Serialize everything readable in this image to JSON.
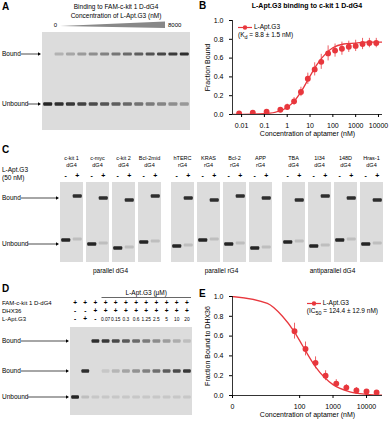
{
  "chart_data": [
    {
      "panel_label": "B",
      "type": "scatter",
      "title": "L-Apt.G3 binding to c-kit 1 D-dG4",
      "x_label": "Concentration of aptamer (nM)",
      "y_label": "Fraction Bound",
      "log": "x",
      "legend": "top-left",
      "annotation": "(Kd = 8.8 ± 1.5 nM)",
      "xlim": [
        0.004,
        15000
      ],
      "xticks": [
        0.01,
        0.1,
        1,
        10,
        100,
        1000,
        10000
      ],
      "ylim": [
        0,
        1
      ],
      "yticks": [
        {
          "value": 0,
          "label": "0.0"
        },
        {
          "value": 0.2,
          "label": "0.2"
        },
        {
          "value": 0.4,
          "label": "0.4"
        },
        {
          "value": 0.6,
          "label": "0.6"
        },
        {
          "value": 0.8,
          "label": "0.8"
        },
        {
          "value": 1,
          "label": "1.0"
        }
      ],
      "series": [
        {
          "name": "L-Apt.G3",
          "type": "scatter",
          "color": "#e8373d",
          "marker": "circle",
          "x": [
            0.0078,
            0.031,
            0.125,
            0.5,
            1,
            2,
            4,
            8,
            16,
            31,
            62,
            125,
            250,
            500,
            1000,
            2000,
            4000,
            8000
          ],
          "values": [
            0.01,
            0.02,
            0.03,
            0.05,
            0.08,
            0.14,
            0.24,
            0.38,
            0.48,
            0.56,
            0.65,
            0.68,
            0.7,
            0.72,
            0.73,
            0.75,
            0.76,
            0.76
          ],
          "errors": [
            0.01,
            0.01,
            0.02,
            0.02,
            0.03,
            0.04,
            0.05,
            0.06,
            0.07,
            0.08,
            0.08,
            0.07,
            0.07,
            0.06,
            0.06,
            0.06,
            0.05,
            0.05
          ]
        },
        {
          "type": "line",
          "color": "#e8373d",
          "x": [
            0.004,
            0.1,
            0.5,
            1,
            2,
            4,
            8.8,
            20,
            50,
            100,
            300,
            1000,
            3000,
            15000
          ],
          "values": [
            0.0004,
            0.009,
            0.04,
            0.078,
            0.14,
            0.24,
            0.385,
            0.53,
            0.65,
            0.71,
            0.75,
            0.76,
            0.77,
            0.77
          ]
        }
      ]
    },
    {
      "panel_label": "E",
      "type": "scatter",
      "x_label": "Concentration of aptamer (nM)",
      "y_label": "Fraction Bound to DHX36",
      "log": "x",
      "legend": "top-right",
      "annotation": "(IC50 = 124.4 ± 12.9 nM)",
      "xlim": [
        0,
        30000
      ],
      "xticks": [
        0,
        100,
        1000,
        10000
      ],
      "ylim": [
        0,
        1
      ],
      "yticks": [
        {
          "value": 0,
          "label": "0.0"
        },
        {
          "value": 0.2,
          "label": "0.2"
        },
        {
          "value": 0.4,
          "label": "0.4"
        },
        {
          "value": 0.6,
          "label": "0.6"
        },
        {
          "value": 0.8,
          "label": "0.8"
        },
        {
          "value": 1,
          "label": "1.0"
        }
      ],
      "series": [
        {
          "name": "L-Apt.G3",
          "type": "scatter",
          "color": "#e8373d",
          "marker": "circle",
          "x": [
            70,
            150,
            300,
            600,
            1250,
            2500,
            5000,
            10000,
            20000
          ],
          "values": [
            0.65,
            0.47,
            0.33,
            0.2,
            0.12,
            0.08,
            0.05,
            0.04,
            0.03
          ],
          "errors": [
            0.08,
            0.07,
            0.06,
            0.05,
            0.04,
            0.03,
            0.03,
            0.02,
            0.02
          ]
        },
        {
          "type": "line",
          "color": "#e8373d",
          "x": [
            0,
            10,
            30,
            70,
            124,
            300,
            1000,
            3000,
            10000,
            30000
          ],
          "values": [
            1.0,
            0.93,
            0.8,
            0.64,
            0.5,
            0.29,
            0.11,
            0.04,
            0.012,
            0.004
          ]
        }
      ]
    }
  ],
  "gels": {
    "A": {
      "panel_label": "A",
      "title": "Binding to FAM-c-kit 1 D-dG4",
      "gradient_label": "Concentration of L-Apt.G3 (nM)",
      "gradient_start": 0,
      "gradient_end": 8000,
      "band_labels": [
        "Bound",
        "Unbound"
      ]
    },
    "C": {
      "panel_label": "C",
      "row_label": [
        "L-Apt.G3",
        "(50 nM)"
      ],
      "lane_marks": [
        "-",
        "+"
      ],
      "band_labels": [
        "Bound",
        "Unbound"
      ],
      "groups": [
        {
          "label": "parallel dG4",
          "gels": [
            [
              "c-kit 1",
              "dG4"
            ],
            [
              "c-myc",
              "dG4"
            ],
            [
              "c-kit 2",
              "dG4"
            ],
            [
              "Bcl-2mid",
              "dG4"
            ]
          ]
        },
        {
          "label": "parallel rG4",
          "gels": [
            [
              "hTERC",
              "rG4"
            ],
            [
              "KRAS",
              "rG4"
            ],
            [
              "Bcl-2",
              "rG4"
            ],
            [
              "APP",
              "rG4"
            ]
          ]
        },
        {
          "label": "antiparallel dG4",
          "gels": [
            [
              "TBA",
              "dG4"
            ],
            [
              "1I34",
              "dG4"
            ],
            [
              "148D",
              "dG4"
            ],
            [
              "Hras-1",
              "dG4"
            ]
          ]
        }
      ]
    },
    "D": {
      "panel_label": "D",
      "titration_label": "L-Apt.G3 (μM)",
      "titration": [
        0.07,
        0.15,
        0.3,
        0.6,
        1.25,
        2.5,
        5,
        10,
        20
      ],
      "band_labels": [
        "Bound",
        "Bound",
        "Unbound"
      ],
      "rows": [
        {
          "label": "FAM-c-kit 1 D-dG4",
          "marks": [
            "+",
            "+",
            "+",
            "+",
            "+",
            "+",
            "+",
            "+",
            "+",
            "+",
            "+",
            "+"
          ]
        },
        {
          "label": "DHX36",
          "marks": [
            "-",
            "-",
            "+",
            "+",
            "+",
            "+",
            "+",
            "+",
            "+",
            "+",
            "+",
            "+"
          ]
        },
        {
          "label": "L-Apt.G3",
          "marks": [
            "-",
            "+",
            "-"
          ]
        }
      ]
    }
  }
}
